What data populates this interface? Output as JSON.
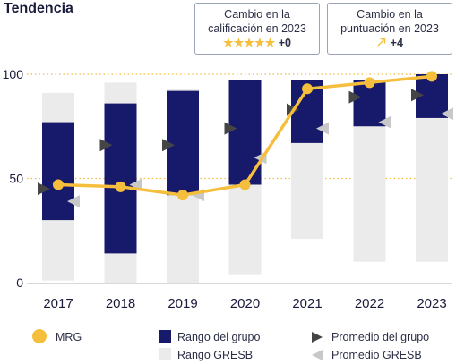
{
  "title": "Tendencia",
  "boxes": {
    "rating": {
      "line1": "Cambio en la",
      "line2": "calificación en 2023",
      "stars": "★★★★★",
      "value": "+0"
    },
    "score": {
      "line1": "Cambio en la",
      "line2": "puntuación en 2023",
      "icon": "arrow-up-right-icon",
      "value": "+4"
    }
  },
  "legend": {
    "mrg": "MRG",
    "group_range": "Rango del grupo",
    "gresb_range": "Rango GRESB",
    "group_avg": "Promedio del grupo",
    "gresb_avg": "Promedio GRESB"
  },
  "colors": {
    "mrg": "#f5be3c",
    "group_range": "#17196b",
    "gresb_range": "#ebebeb",
    "group_avg": "#454545",
    "gresb_avg": "#c8c8c8",
    "gridline": "#f5be3c",
    "axis_text": "#1a1a3c"
  },
  "chart_data": {
    "type": "bar",
    "categories": [
      "2017",
      "2018",
      "2019",
      "2020",
      "2021",
      "2022",
      "2023"
    ],
    "ylim": [
      0,
      100
    ],
    "yticks": [
      "0",
      "50",
      "100"
    ],
    "series": [
      {
        "name": "MRG",
        "kind": "line",
        "values": [
          47,
          46,
          42,
          47,
          93,
          96,
          99
        ]
      },
      {
        "name": "Rango del grupo",
        "kind": "range",
        "low": [
          30,
          14,
          42,
          47,
          67,
          75,
          79
        ],
        "high": [
          77,
          86,
          92,
          97,
          97,
          97,
          100
        ]
      },
      {
        "name": "Rango GRESB",
        "kind": "range",
        "low": [
          1,
          0,
          0,
          4,
          21,
          10,
          10
        ],
        "high": [
          91,
          96,
          93,
          97,
          97,
          97,
          100
        ]
      },
      {
        "name": "Promedio del grupo",
        "kind": "marker",
        "values": [
          45,
          66,
          66,
          74,
          83,
          89,
          90
        ]
      },
      {
        "name": "Promedio GRESB",
        "kind": "marker",
        "values": [
          39,
          47,
          42,
          60,
          74,
          77,
          81
        ]
      }
    ]
  }
}
